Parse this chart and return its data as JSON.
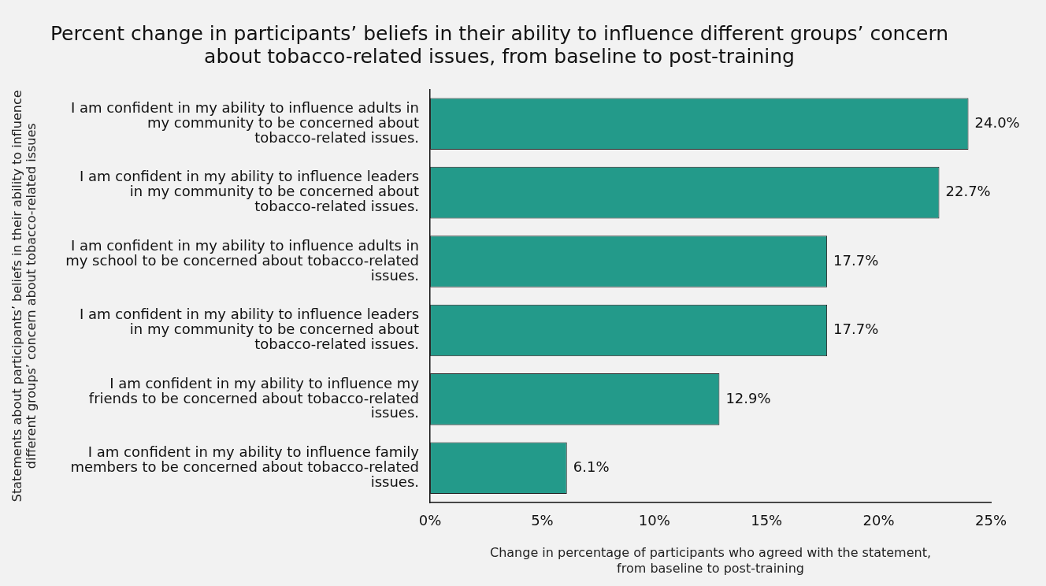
{
  "chart_data": {
    "type": "bar",
    "orientation": "horizontal",
    "title": "Percent change in participants’ beliefs in their ability to influence different groups’ concern about tobacco-related issues, from baseline to post-training",
    "xlabel": "Change in percentage of participants who agreed with the statement, from baseline to post-training",
    "ylabel": "Statements about participants’ beliefs in their ability to influence different groups’ concern about tobacco-related issues",
    "categories": [
      "I am confident in my ability to influence adults in my community to be concerned about tobacco-related issues.",
      "I am confident in my ability to influence leaders in my community to be concerned about tobacco-related issues.",
      "I am confident in my ability to influence adults in my school to be concerned about tobacco-related issues.",
      "I am confident in my ability to influence leaders in my community to be concerned about tobacco-related issues.",
      "I am confident in my ability to influence my friends to be concerned about tobacco-related issues.",
      "I am confident in my ability to influence family members to be concerned about tobacco-related issues."
    ],
    "values": [
      24.0,
      22.7,
      17.7,
      17.7,
      12.9,
      6.1
    ],
    "value_labels": [
      "24.0%",
      "22.7%",
      "17.7%",
      "17.7%",
      "12.9%",
      "6.1%"
    ],
    "color": "#239a8a",
    "xlim": [
      0,
      25
    ],
    "xticks": [
      {
        "value": 0,
        "label": "0%"
      },
      {
        "value": 5,
        "label": "5%"
      },
      {
        "value": 10,
        "label": "10%"
      },
      {
        "value": 15,
        "label": "15%"
      },
      {
        "value": 20,
        "label": "20%"
      },
      {
        "value": 25,
        "label": "25%"
      }
    ],
    "grid": false,
    "legend": false
  }
}
